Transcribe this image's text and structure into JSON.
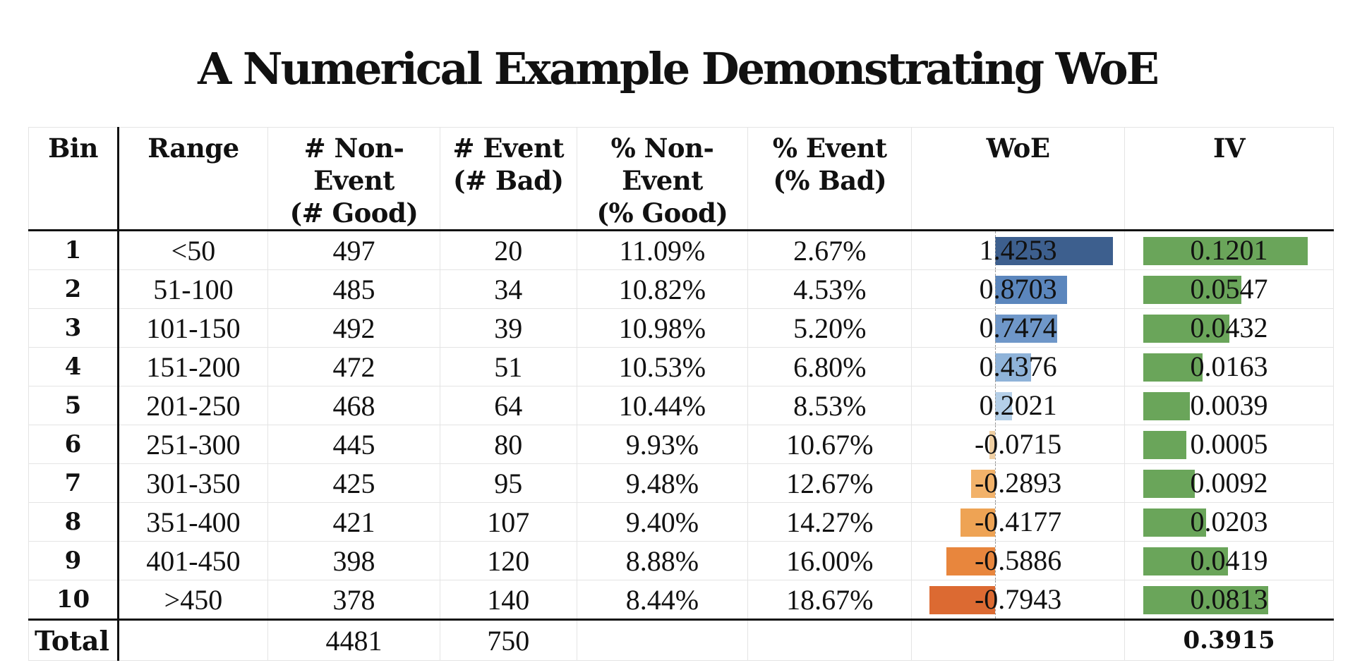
{
  "title": "A Numerical Example Demonstrating WoE",
  "headers": {
    "bin": "Bin",
    "range": "Range",
    "non_event": [
      "# Non-",
      "Event",
      "(# Good)"
    ],
    "event": [
      "# Event",
      "(# Bad)"
    ],
    "pct_non_event": [
      "% Non-",
      "Event",
      "(% Good)"
    ],
    "pct_event": [
      "% Event",
      "(% Bad)"
    ],
    "woe": "WoE",
    "iv": "IV"
  },
  "rows": [
    {
      "bin": "1",
      "range": "<50",
      "non_event": "497",
      "event": "20",
      "pct_non_event": "11.09%",
      "pct_event": "2.67%",
      "woe": "1.4253",
      "woe_value": 1.4253,
      "iv": "0.1201",
      "iv_value": 0.1201
    },
    {
      "bin": "2",
      "range": "51-100",
      "non_event": "485",
      "event": "34",
      "pct_non_event": "10.82%",
      "pct_event": "4.53%",
      "woe": "0.8703",
      "woe_value": 0.8703,
      "iv": "0.0547",
      "iv_value": 0.0547
    },
    {
      "bin": "3",
      "range": "101-150",
      "non_event": "492",
      "event": "39",
      "pct_non_event": "10.98%",
      "pct_event": "5.20%",
      "woe": "0.7474",
      "woe_value": 0.7474,
      "iv": "0.0432",
      "iv_value": 0.0432
    },
    {
      "bin": "4",
      "range": "151-200",
      "non_event": "472",
      "event": "51",
      "pct_non_event": "10.53%",
      "pct_event": "6.80%",
      "woe": "0.4376",
      "woe_value": 0.4376,
      "iv": "0.0163",
      "iv_value": 0.0163
    },
    {
      "bin": "5",
      "range": "201-250",
      "non_event": "468",
      "event": "64",
      "pct_non_event": "10.44%",
      "pct_event": "8.53%",
      "woe": "0.2021",
      "woe_value": 0.2021,
      "iv": "0.0039",
      "iv_value": 0.0039
    },
    {
      "bin": "6",
      "range": "251-300",
      "non_event": "445",
      "event": "80",
      "pct_non_event": "9.93%",
      "pct_event": "10.67%",
      "woe": "-0.0715",
      "woe_value": -0.0715,
      "iv": "0.0005",
      "iv_value": 0.0005
    },
    {
      "bin": "7",
      "range": "301-350",
      "non_event": "425",
      "event": "95",
      "pct_non_event": "9.48%",
      "pct_event": "12.67%",
      "woe": "-0.2893",
      "woe_value": -0.2893,
      "iv": "0.0092",
      "iv_value": 0.0092
    },
    {
      "bin": "8",
      "range": "351-400",
      "non_event": "421",
      "event": "107",
      "pct_non_event": "9.40%",
      "pct_event": "14.27%",
      "woe": "-0.4177",
      "woe_value": -0.4177,
      "iv": "0.0203",
      "iv_value": 0.0203
    },
    {
      "bin": "9",
      "range": "401-450",
      "non_event": "398",
      "event": "120",
      "pct_non_event": "8.88%",
      "pct_event": "16.00%",
      "woe": "-0.5886",
      "woe_value": -0.5886,
      "iv": "0.0419",
      "iv_value": 0.0419
    },
    {
      "bin": "10",
      "range": ">450",
      "non_event": "378",
      "event": "140",
      "pct_non_event": "8.44%",
      "pct_event": "18.67%",
      "woe": "-0.7943",
      "woe_value": -0.7943,
      "iv": "0.0813",
      "iv_value": 0.0813
    }
  ],
  "total": {
    "label": "Total",
    "non_event": "4481",
    "event": "750",
    "iv": "0.3915"
  },
  "colors": {
    "woe_positive": [
      "#3d5f8e",
      "#5b86bd",
      "#6f97c9",
      "#8fb3d9",
      "#b4cfe8"
    ],
    "woe_negative": [
      "#f0cfa2",
      "#f2b26a",
      "#eea354",
      "#e8863d",
      "#dc6a32"
    ],
    "iv_bar": "#6aa55a"
  }
}
